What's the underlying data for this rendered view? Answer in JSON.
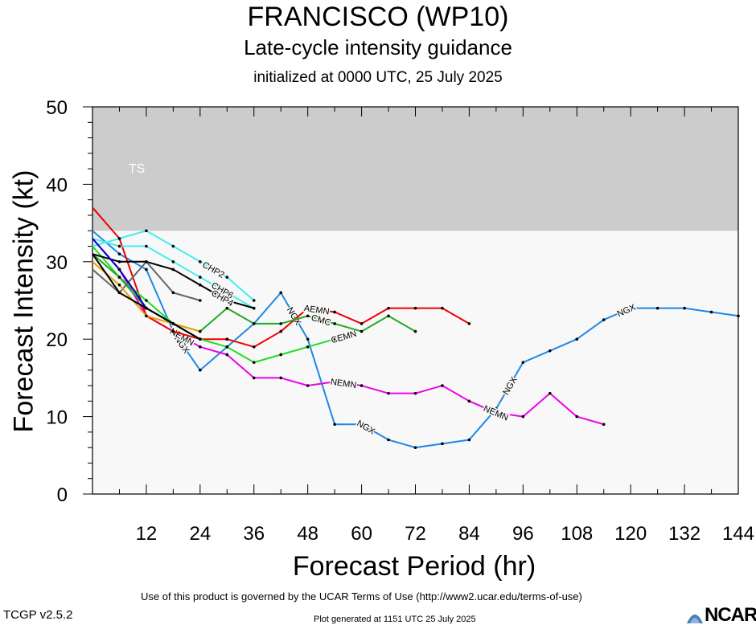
{
  "header": {
    "title": "FRANCISCO (WP10)",
    "subtitle": "Late-cycle intensity guidance",
    "initialized": "initialized at 0000 UTC, 25 July 2025"
  },
  "footer": {
    "terms": "Use of this product is governed by the UCAR Terms of Use (http://www2.ucar.edu/terms-of-use)",
    "version": "TCGP v2.5.2",
    "generated": "Plot generated at 1151 UTC   25 July 2025",
    "logo_text": "NCAR"
  },
  "colors": {
    "band": "#cccccc",
    "plot_bg": "#f8f8f8",
    "ngx": "#1e88e5",
    "nemn": "#ee00ee",
    "aemn": "#ee0000",
    "cemn": "#22dd22",
    "cmc": "#22aa22",
    "chips": "#44eeee",
    "black": "#000000",
    "gray": "#666666",
    "orange": "#e8a000",
    "blue": "#0000cc"
  },
  "chart_data": {
    "type": "line",
    "xlabel": "Forecast Period (hr)",
    "ylabel": "Forecast Intensity (kt)",
    "xlim": [
      0,
      144
    ],
    "ylim": [
      0,
      50
    ],
    "xticks": [
      12,
      24,
      36,
      48,
      60,
      72,
      84,
      96,
      108,
      120,
      132,
      144
    ],
    "yticks": [
      0,
      10,
      20,
      30,
      40,
      50
    ],
    "bands": [
      {
        "label": "TS",
        "from": 34,
        "to": 50
      }
    ],
    "series": [
      {
        "name": "NGX",
        "color": "#1e88e5",
        "labels": [
          20,
          45,
          61,
          93,
          119
        ],
        "x": [
          0,
          6,
          12,
          18,
          24,
          30,
          36,
          42,
          48,
          54,
          60,
          66,
          72,
          78,
          84,
          90,
          96,
          102,
          108,
          114,
          120,
          126,
          132,
          138,
          144
        ],
        "y": [
          34,
          31,
          29,
          21,
          16,
          19,
          22,
          26,
          20,
          9,
          9,
          7,
          6,
          6.5,
          7,
          11,
          17,
          18.5,
          20,
          22.5,
          24,
          24,
          24,
          23.5,
          23
        ]
      },
      {
        "name": "NEMN",
        "color": "#ee00ee",
        "labels": [
          20,
          56,
          90
        ],
        "x": [
          0,
          6,
          12,
          18,
          24,
          30,
          36,
          42,
          48,
          54,
          60,
          66,
          72,
          78,
          84,
          90,
          96,
          102,
          108,
          114
        ],
        "y": [
          33,
          29,
          23,
          21,
          19,
          18,
          15,
          15,
          14,
          14.5,
          14,
          13,
          13,
          14,
          12,
          10.5,
          10,
          13,
          10,
          9
        ]
      },
      {
        "name": "AEMN",
        "color": "#ee0000",
        "labels": [
          50
        ],
        "x": [
          0,
          6,
          12,
          18,
          24,
          30,
          36,
          42,
          48,
          54,
          60,
          66,
          72,
          78,
          84
        ],
        "y": [
          37,
          33,
          23,
          21,
          20,
          20,
          19,
          21,
          24,
          23.5,
          22,
          24,
          24,
          24,
          22
        ]
      },
      {
        "name": "CEMN",
        "color": "#22dd22",
        "labels": [
          56
        ],
        "x": [
          0,
          6,
          12,
          18,
          24,
          30,
          36,
          42,
          48,
          54
        ],
        "y": [
          32,
          28,
          25,
          22,
          20,
          19,
          17,
          18,
          19,
          20
        ]
      },
      {
        "name": "CMC",
        "color": "#22aa22",
        "labels": [
          51
        ],
        "x": [
          0,
          6,
          12,
          18,
          24,
          30,
          36,
          42,
          48,
          54,
          60,
          66,
          72
        ],
        "y": [
          31,
          28,
          24,
          22,
          21,
          24,
          22,
          22,
          23,
          22,
          21,
          23,
          21
        ]
      },
      {
        "name": "CHP2",
        "color": "#44eeee",
        "labels": [
          27
        ],
        "x": [
          0,
          6,
          12,
          18,
          24,
          30,
          36
        ],
        "y": [
          32,
          33,
          34,
          32,
          30,
          28,
          25
        ]
      },
      {
        "name": "CHP6",
        "color": "#44eeee",
        "labels": [
          29
        ],
        "x": [
          0,
          6,
          12,
          18,
          24,
          30,
          36
        ],
        "y": [
          33,
          32,
          32,
          30,
          28,
          26,
          24
        ]
      },
      {
        "name": "CHP4",
        "color": "#000000",
        "labels": [
          29
        ],
        "x": [
          0,
          6,
          12,
          18,
          24,
          30,
          36
        ],
        "y": [
          31,
          30,
          30,
          29,
          27,
          25,
          24
        ]
      },
      {
        "name": "",
        "color": "#666666",
        "labels": [],
        "x": [
          0,
          6,
          12,
          18,
          24
        ],
        "y": [
          29,
          26,
          30,
          26,
          25
        ]
      },
      {
        "name": "",
        "color": "#e8a000",
        "labels": [],
        "x": [
          0,
          6,
          12,
          18,
          24
        ],
        "y": [
          30,
          27,
          23,
          22,
          21
        ]
      },
      {
        "name": "",
        "color": "#0000cc",
        "labels": [],
        "x": [
          0,
          6,
          12,
          18,
          24
        ],
        "y": [
          33,
          29,
          24,
          22,
          20
        ]
      },
      {
        "name": "",
        "color": "#000000",
        "labels": [],
        "x": [
          0,
          6,
          12,
          18,
          24
        ],
        "y": [
          31,
          26,
          24,
          22,
          20
        ]
      }
    ]
  }
}
